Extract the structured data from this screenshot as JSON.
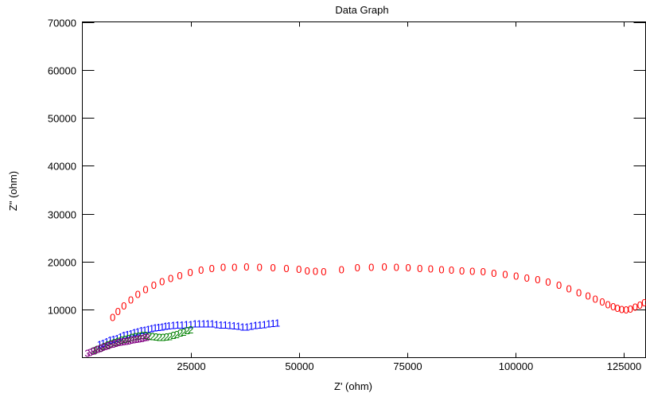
{
  "chart_data": {
    "type": "scatter",
    "title": "Data Graph",
    "xlabel": "Z' (ohm)",
    "ylabel": "Z\" (ohm)",
    "xlim": [
      0,
      130000
    ],
    "ylim": [
      0,
      70000
    ],
    "xticks": [
      25000,
      50000,
      75000,
      100000,
      125000
    ],
    "yticks": [
      10000,
      20000,
      30000,
      40000,
      50000,
      60000,
      70000
    ],
    "grid": false,
    "series": [
      {
        "marker": "0",
        "color": "#ff0000",
        "points": [
          [
            7000,
            8500
          ],
          [
            8200,
            9700
          ],
          [
            9600,
            10900
          ],
          [
            11200,
            12100
          ],
          [
            12800,
            13300
          ],
          [
            14600,
            14300
          ],
          [
            16500,
            15200
          ],
          [
            18400,
            15900
          ],
          [
            20400,
            16600
          ],
          [
            22500,
            17200
          ],
          [
            24900,
            17800
          ],
          [
            27400,
            18300
          ],
          [
            29900,
            18700
          ],
          [
            32500,
            18900
          ],
          [
            35100,
            18900
          ],
          [
            37900,
            19000
          ],
          [
            40900,
            18900
          ],
          [
            44000,
            18800
          ],
          [
            47100,
            18700
          ],
          [
            50000,
            18500
          ],
          [
            51900,
            18200
          ],
          [
            53800,
            18100
          ],
          [
            55700,
            18000
          ],
          [
            59800,
            18400
          ],
          [
            63500,
            18800
          ],
          [
            66700,
            18900
          ],
          [
            69700,
            19000
          ],
          [
            72500,
            18900
          ],
          [
            75200,
            18800
          ],
          [
            77900,
            18700
          ],
          [
            80400,
            18600
          ],
          [
            82900,
            18400
          ],
          [
            85200,
            18300
          ],
          [
            87600,
            18200
          ],
          [
            90000,
            18100
          ],
          [
            92500,
            18000
          ],
          [
            95000,
            17700
          ],
          [
            97600,
            17400
          ],
          [
            100100,
            17100
          ],
          [
            102600,
            16700
          ],
          [
            105100,
            16300
          ],
          [
            107500,
            15800
          ],
          [
            110000,
            15200
          ],
          [
            112300,
            14400
          ],
          [
            114600,
            13600
          ],
          [
            116700,
            12900
          ],
          [
            118400,
            12300
          ],
          [
            120000,
            11700
          ],
          [
            121300,
            11100
          ],
          [
            122500,
            10700
          ],
          [
            123500,
            10400
          ],
          [
            124500,
            10100
          ],
          [
            125500,
            10000
          ],
          [
            126500,
            10200
          ],
          [
            127600,
            10600
          ],
          [
            128700,
            11000
          ],
          [
            129700,
            11500
          ]
        ]
      },
      {
        "marker": "1",
        "color": "#0000ff",
        "points": [
          [
            4000,
            2800
          ],
          [
            4800,
            3100
          ],
          [
            5600,
            3400
          ],
          [
            6400,
            3700
          ],
          [
            7200,
            3900
          ],
          [
            8000,
            4100
          ],
          [
            8800,
            4400
          ],
          [
            9600,
            4700
          ],
          [
            10400,
            4900
          ],
          [
            11200,
            5100
          ],
          [
            12000,
            5300
          ],
          [
            12800,
            5500
          ],
          [
            13600,
            5700
          ],
          [
            14400,
            5800
          ],
          [
            15200,
            6000
          ],
          [
            16000,
            6100
          ],
          [
            16800,
            6300
          ],
          [
            17600,
            6400
          ],
          [
            18400,
            6500
          ],
          [
            19200,
            6600
          ],
          [
            20000,
            6700
          ],
          [
            21000,
            6800
          ],
          [
            22000,
            6900
          ],
          [
            23000,
            6900
          ],
          [
            24000,
            7000
          ],
          [
            25000,
            7000
          ],
          [
            26000,
            7100
          ],
          [
            27000,
            7100
          ],
          [
            28000,
            7100
          ],
          [
            29000,
            7100
          ],
          [
            30000,
            7100
          ],
          [
            31000,
            7000
          ],
          [
            32000,
            6900
          ],
          [
            33000,
            6900
          ],
          [
            34000,
            6800
          ],
          [
            35000,
            6700
          ],
          [
            36000,
            6600
          ],
          [
            37000,
            6500
          ],
          [
            38000,
            6500
          ],
          [
            39000,
            6600
          ],
          [
            40000,
            6800
          ],
          [
            41000,
            6900
          ],
          [
            42000,
            7000
          ],
          [
            43000,
            7100
          ],
          [
            44000,
            7200
          ],
          [
            45000,
            7300
          ]
        ]
      },
      {
        "marker": "2",
        "color": "#008000",
        "points": [
          [
            2600,
            1500
          ],
          [
            3400,
            1800
          ],
          [
            4200,
            2100
          ],
          [
            5000,
            2400
          ],
          [
            5800,
            2700
          ],
          [
            6600,
            3000
          ],
          [
            7400,
            3200
          ],
          [
            8200,
            3500
          ],
          [
            9000,
            3700
          ],
          [
            9800,
            3900
          ],
          [
            10600,
            4100
          ],
          [
            11400,
            4300
          ],
          [
            12200,
            4500
          ],
          [
            13000,
            4600
          ],
          [
            13800,
            4700
          ],
          [
            14600,
            4700
          ],
          [
            15400,
            4600
          ],
          [
            16200,
            4500
          ],
          [
            17000,
            4400
          ],
          [
            17800,
            4300
          ],
          [
            18600,
            4300
          ],
          [
            19400,
            4400
          ],
          [
            20200,
            4500
          ],
          [
            21000,
            4700
          ],
          [
            21800,
            4900
          ],
          [
            22600,
            5200
          ],
          [
            23400,
            5400
          ],
          [
            24200,
            5700
          ],
          [
            25000,
            5900
          ]
        ]
      },
      {
        "marker": "3",
        "color": "#800080",
        "points": [
          [
            1200,
            1000
          ],
          [
            1800,
            1200
          ],
          [
            2400,
            1400
          ],
          [
            3000,
            1600
          ],
          [
            3600,
            1800
          ],
          [
            4200,
            2000
          ],
          [
            4800,
            2200
          ],
          [
            5400,
            2400
          ],
          [
            6000,
            2600
          ],
          [
            6600,
            2800
          ],
          [
            7200,
            2900
          ],
          [
            7800,
            3100
          ],
          [
            8400,
            3200
          ],
          [
            9000,
            3300
          ],
          [
            9600,
            3400
          ],
          [
            10200,
            3500
          ],
          [
            10800,
            3600
          ],
          [
            11400,
            3700
          ],
          [
            12000,
            3800
          ],
          [
            12600,
            3900
          ],
          [
            13200,
            4000
          ],
          [
            13800,
            4100
          ],
          [
            14400,
            4200
          ],
          [
            15000,
            4300
          ]
        ]
      }
    ]
  }
}
